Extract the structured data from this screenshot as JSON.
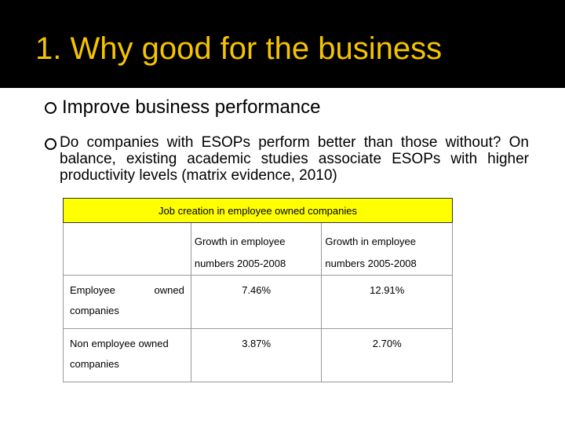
{
  "slide": {
    "title": "1. Why good for the business",
    "bullets": [
      "Improve business performance",
      "Do companies with ESOPs perform better than those without? On balance, existing academic studies associate ESOPs with higher productivity levels (matrix evidence, 2010)"
    ]
  },
  "table": {
    "caption": "Job creation in employee owned companies",
    "columns": [
      "",
      "Growth in employee numbers 2005-2008",
      "Growth in employee numbers 2005-2008"
    ],
    "rows": [
      {
        "label_parts": [
          "Employee",
          "owned"
        ],
        "label_rest": "companies",
        "values": [
          "7.46%",
          "12.91%"
        ]
      },
      {
        "label_parts": [
          "Non employee owned"
        ],
        "label_rest": "companies",
        "values": [
          "3.87%",
          "2.70%"
        ]
      }
    ]
  }
}
